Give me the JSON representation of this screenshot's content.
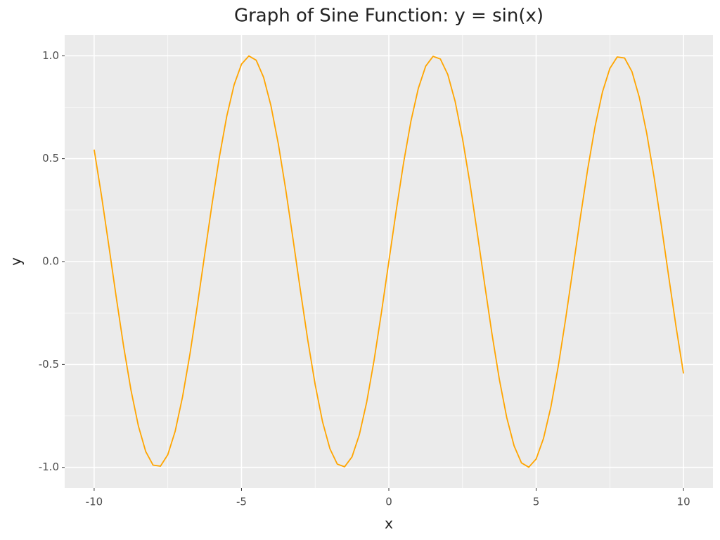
{
  "chart_data": {
    "type": "line",
    "title": "Graph of Sine Function: y = sin(x)",
    "x_label": "x",
    "y_label": "y",
    "x": [
      -10,
      -9.75,
      -9.5,
      -9.25,
      -9,
      -8.75,
      -8.5,
      -8.25,
      -8,
      -7.75,
      -7.5,
      -7.25,
      -7,
      -6.75,
      -6.5,
      -6.25,
      -6,
      -5.75,
      -5.5,
      -5.25,
      -5,
      -4.75,
      -4.5,
      -4.25,
      -4,
      -3.75,
      -3.5,
      -3.25,
      -3,
      -2.75,
      -2.5,
      -2.25,
      -2,
      -1.75,
      -1.5,
      -1.25,
      -1,
      -0.75,
      -0.5,
      -0.25,
      0,
      0.25,
      0.5,
      0.75,
      1,
      1.25,
      1.5,
      1.75,
      2,
      2.25,
      2.5,
      2.75,
      3,
      3.25,
      3.5,
      3.75,
      4,
      4.25,
      4.5,
      4.75,
      5,
      5.25,
      5.5,
      5.75,
      6,
      6.25,
      6.5,
      6.75,
      7,
      7.25,
      7.5,
      7.75,
      8,
      8.25,
      8.5,
      8.75,
      9,
      9.25,
      9.5,
      9.75,
      10
    ],
    "series": [
      {
        "name": "y",
        "color": "#FFA500",
        "values": [
          0.544,
          0.319,
          0.075,
          -0.174,
          -0.412,
          -0.625,
          -0.798,
          -0.923,
          -0.989,
          -0.994,
          -0.938,
          -0.824,
          -0.657,
          -0.45,
          -0.215,
          0.033,
          0.279,
          0.508,
          0.706,
          0.859,
          0.959,
          0.999,
          0.978,
          0.895,
          0.757,
          0.572,
          0.351,
          0.108,
          -0.141,
          -0.382,
          -0.598,
          -0.778,
          -0.909,
          -0.984,
          -0.997,
          -0.949,
          -0.841,
          -0.682,
          -0.479,
          -0.247,
          0,
          0.247,
          0.479,
          0.682,
          0.841,
          0.949,
          0.997,
          0.984,
          0.909,
          0.778,
          0.598,
          0.382,
          0.141,
          -0.108,
          -0.351,
          -0.572,
          -0.757,
          -0.895,
          -0.978,
          -0.999,
          -0.959,
          -0.859,
          -0.706,
          -0.508,
          -0.279,
          -0.033,
          0.215,
          0.45,
          0.657,
          0.824,
          0.938,
          0.994,
          0.989,
          0.923,
          0.798,
          0.625,
          0.412,
          0.174,
          -0.075,
          -0.319,
          -0.544
        ]
      }
    ],
    "xlim": [
      -11,
      11
    ],
    "ylim": [
      -1.1,
      1.1
    ],
    "xticks": [
      -10,
      -5,
      0,
      5,
      10
    ],
    "yticks": [
      {
        "value": -1,
        "label": "-1.0"
      },
      -0.5,
      {
        "value": 0,
        "label": "0.0"
      },
      0.5,
      {
        "value": 1,
        "label": "1.0"
      }
    ],
    "grid": true,
    "legend": false
  }
}
